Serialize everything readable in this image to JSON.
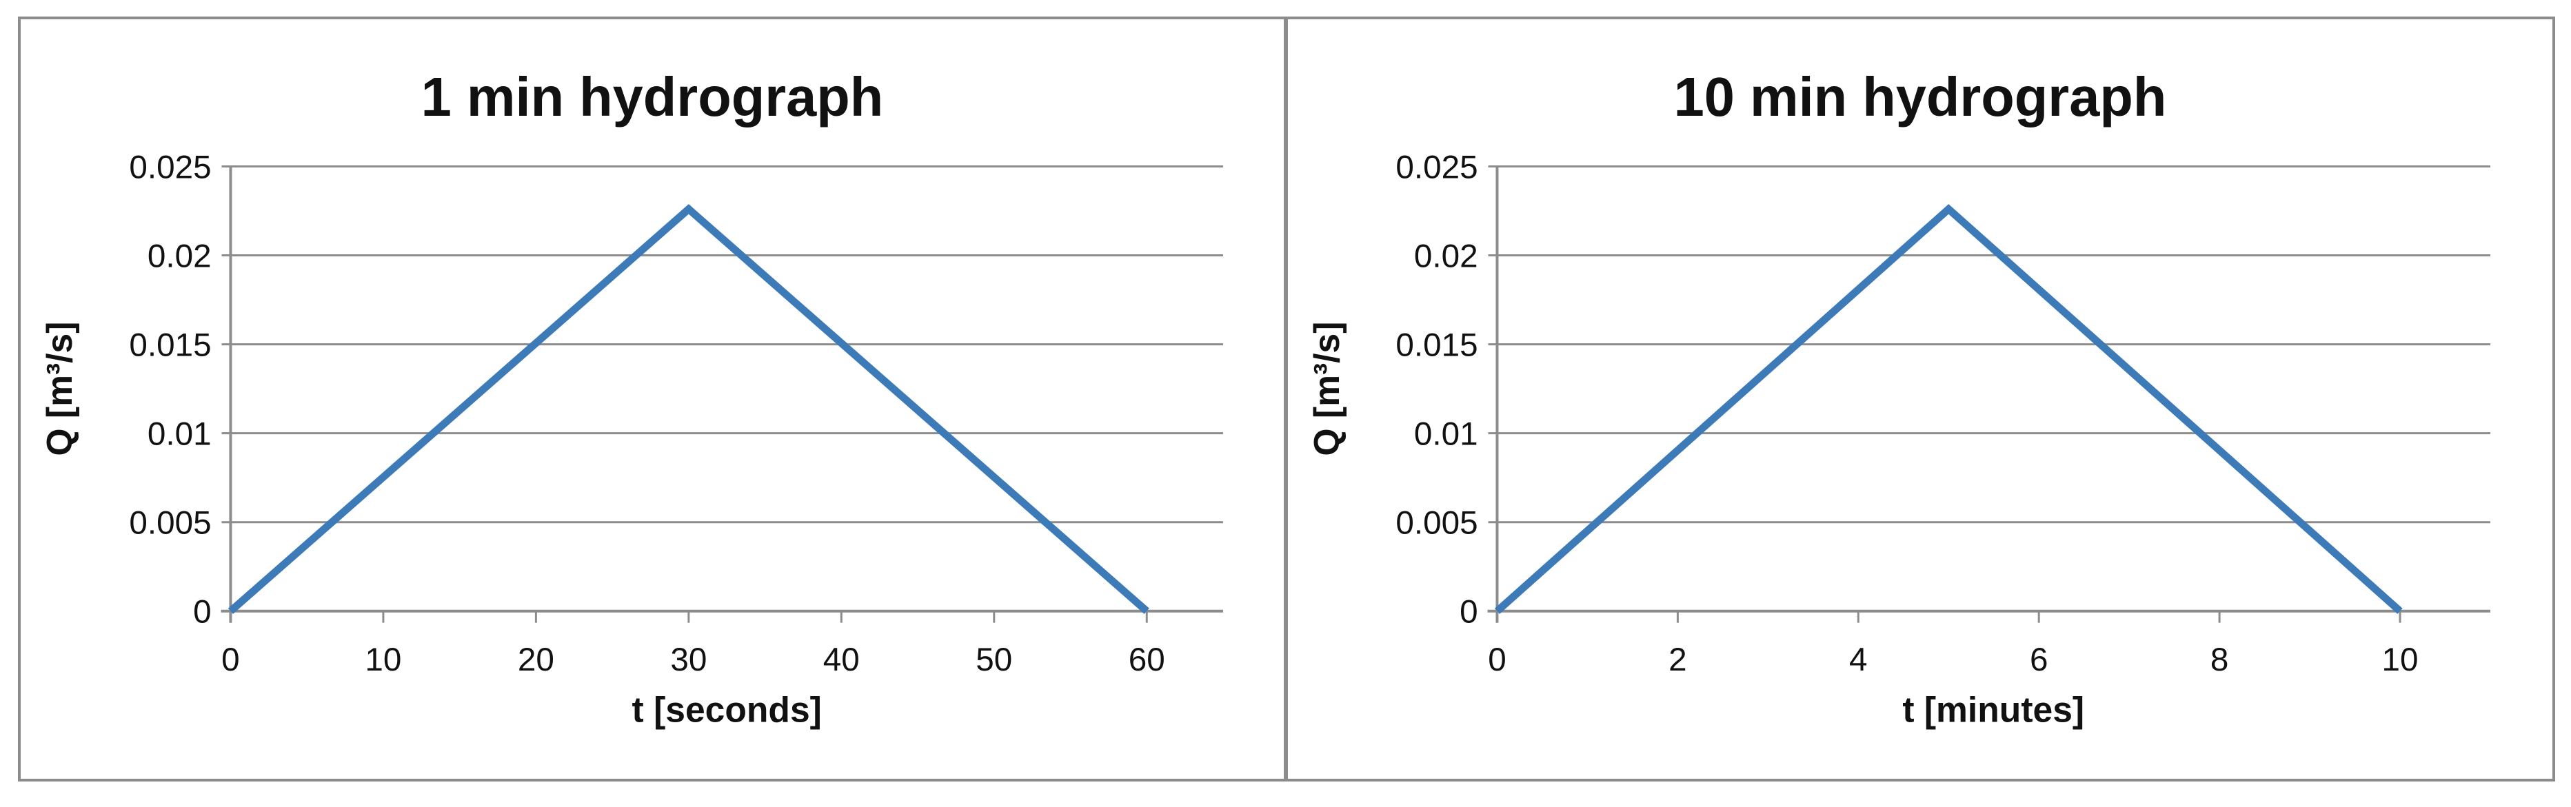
{
  "figure": {
    "background_color": "#ffffff",
    "frame_border_color": "#8C8C8C"
  },
  "chart_data": [
    {
      "type": "line",
      "title": "1 min hydrograph",
      "xlabel": "t [seconds]",
      "ylabel": "Q [m³/s]",
      "x": [
        0,
        30,
        60
      ],
      "y": [
        0,
        0.0226,
        0
      ],
      "x_ticks": [
        0,
        10,
        20,
        30,
        40,
        50,
        60
      ],
      "y_ticks": [
        0,
        0.005,
        0.01,
        0.015,
        0.02,
        0.025
      ],
      "xlim": [
        0,
        65
      ],
      "ylim": [
        0,
        0.025
      ],
      "line_color": "#3D7AB8",
      "grid_color": "#8C8C8C",
      "axis_color": "#8C8C8C",
      "text_color": "#111111",
      "gridlines": "horizontal",
      "legend": "none"
    },
    {
      "type": "line",
      "title": "10 min hydrograph",
      "xlabel": "t [minutes]",
      "ylabel": "Q [m³/s]",
      "x": [
        0,
        5,
        10
      ],
      "y": [
        0,
        0.0226,
        0
      ],
      "x_ticks": [
        0,
        2,
        4,
        6,
        8,
        10
      ],
      "y_ticks": [
        0,
        0.005,
        0.01,
        0.015,
        0.02,
        0.025
      ],
      "xlim": [
        0,
        11
      ],
      "ylim": [
        0,
        0.025
      ],
      "line_color": "#3D7AB8",
      "grid_color": "#8C8C8C",
      "axis_color": "#8C8C8C",
      "text_color": "#111111",
      "gridlines": "horizontal",
      "legend": "none"
    }
  ]
}
